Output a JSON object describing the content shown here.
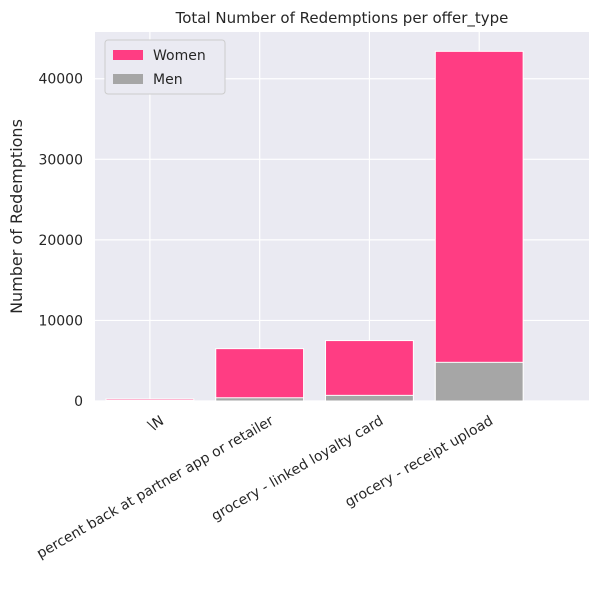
{
  "chart_data": {
    "type": "bar",
    "stacked": true,
    "title": "Total Number of Redemptions per offer_type",
    "xlabel": "",
    "ylabel": "Number of Redemptions",
    "categories": [
      "\\N",
      "percent back at partner app or retailer",
      "grocery - linked loyalty card",
      "grocery - receipt upload"
    ],
    "series": [
      {
        "name": "Women",
        "color": "#ff3d83",
        "totals": [
          250,
          6500,
          7500,
          43400
        ]
      },
      {
        "name": "Men",
        "color": "#a6a6a6",
        "values": [
          80,
          400,
          700,
          4800
        ]
      }
    ],
    "ylim": [
      0,
      45800
    ],
    "yticks": [
      0,
      10000,
      20000,
      30000,
      40000
    ],
    "ytick_labels": [
      "0",
      "10000",
      "20000",
      "30000",
      "40000"
    ],
    "grid": true,
    "legend_position": "top-left",
    "background": "#eaeaf2"
  }
}
